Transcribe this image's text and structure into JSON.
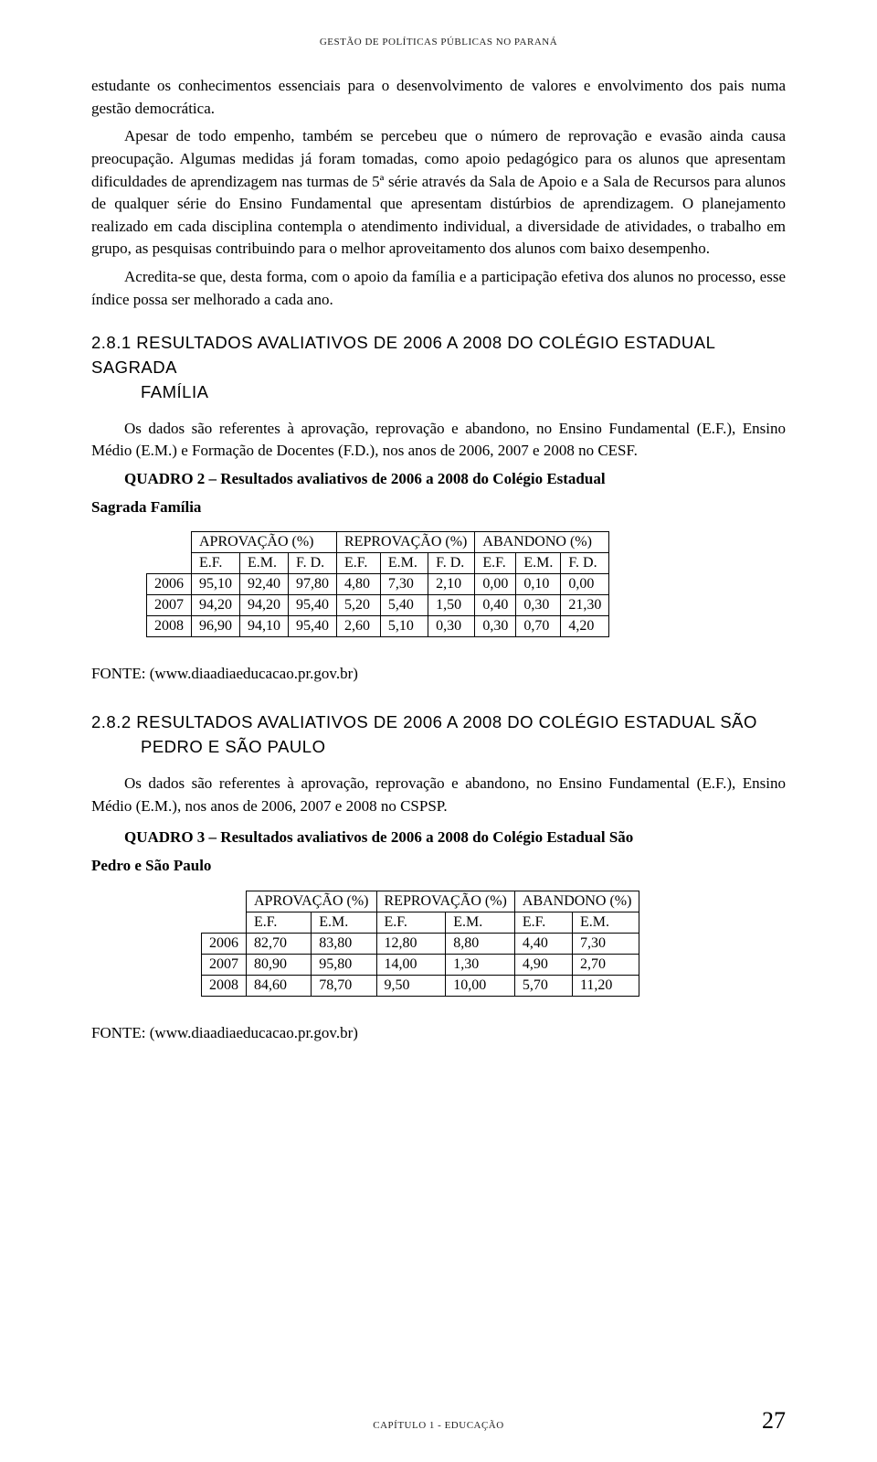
{
  "header": {
    "running": "GESTÃO DE POLÍTICAS PÚBLICAS NO PARANÁ"
  },
  "paragraphs": {
    "p1": "estudante os conhecimentos essenciais para o desenvolvimento de valores e envolvimento dos pais numa gestão democrática.",
    "p2": "Apesar de todo empenho, também se percebeu que o número de reprovação e evasão ainda causa preocupação. Algumas medidas já foram tomadas, como apoio pedagógico para os alunos que apresentam dificuldades de aprendizagem nas turmas de 5ª série através da Sala de Apoio e a Sala de Recursos para alunos de qualquer série do Ensino Fundamental que apresentam distúrbios de aprendizagem. O planejamento realizado em cada disciplina contempla o atendimento individual, a diversidade de atividades, o trabalho em grupo, as pesquisas contribuindo para o melhor aproveitamento dos alunos com baixo desempenho.",
    "p3": "Acredita-se que, desta forma, com o apoio da família e a participação efetiva dos alunos no processo, esse índice possa ser melhorado a cada ano.",
    "p4": "Os dados são referentes à aprovação, reprovação e abandono, no Ensino Fundamental (E.F.), Ensino Médio (E.M.) e Formação de Docentes (F.D.), nos anos de 2006, 2007 e 2008 no CESF.",
    "p5": "Os dados são referentes à aprovação, reprovação e abandono, no Ensino Fundamental (E.F.), Ensino Médio (E.M.), nos anos de 2006, 2007 e 2008 no CSPSP."
  },
  "sections": {
    "s281_num": "2.8.1",
    "s281_title": "RESULTADOS AVALIATIVOS DE 2006 A 2008 DO COLÉGIO ESTADUAL SAGRADA",
    "s281_title2": "FAMÍLIA",
    "s282_num": "2.8.2",
    "s282_title": "RESULTADOS AVALIATIVOS DE 2006 A 2008 DO COLÉGIO ESTADUAL SÃO",
    "s282_title2": "PEDRO E SÃO PAULO"
  },
  "quadros": {
    "q2_line1": "QUADRO 2 – Resultados avaliativos de 2006 a 2008 do Colégio Estadual",
    "q2_line2": "Sagrada Família",
    "q3_line1": "QUADRO 3 – Resultados avaliativos de 2006 a 2008 do Colégio Estadual São",
    "q3_line2": "Pedro e São Paulo"
  },
  "table2": {
    "group_headers": [
      "APROVAÇÃO (%)",
      "REPROVAÇÃO (%)",
      "ABANDONO (%)"
    ],
    "sub_headers": [
      "E.F.",
      "E.M.",
      "F. D.",
      "E.F.",
      "E.M.",
      "F. D.",
      "E.F.",
      "E.M.",
      "F. D."
    ],
    "rows": [
      {
        "year": "2006",
        "cells": [
          "95,10",
          "92,40",
          "97,80",
          "4,80",
          "7,30",
          "2,10",
          "0,00",
          "0,10",
          "0,00"
        ]
      },
      {
        "year": "2007",
        "cells": [
          "94,20",
          "94,20",
          "95,40",
          "5,20",
          "5,40",
          "1,50",
          "0,40",
          "0,30",
          "21,30"
        ]
      },
      {
        "year": "2008",
        "cells": [
          "96,90",
          "94,10",
          "95,40",
          "2,60",
          "5,10",
          "0,30",
          "0,30",
          "0,70",
          "4,20"
        ]
      }
    ]
  },
  "table3": {
    "group_headers": [
      "APROVAÇÃO (%)",
      "REPROVAÇÃO (%)",
      "ABANDONO (%)"
    ],
    "sub_headers": [
      "E.F.",
      "E.M.",
      "E.F.",
      "E.M.",
      "E.F.",
      "E.M."
    ],
    "rows": [
      {
        "year": "2006",
        "cells": [
          "82,70",
          "83,80",
          "12,80",
          "8,80",
          "4,40",
          "7,30"
        ]
      },
      {
        "year": "2007",
        "cells": [
          "80,90",
          "95,80",
          "14,00",
          "1,30",
          "4,90",
          "2,70"
        ]
      },
      {
        "year": "2008",
        "cells": [
          "84,60",
          "78,70",
          "9,50",
          "10,00",
          "5,70",
          "11,20"
        ]
      }
    ]
  },
  "source": "FONTE: (www.diaadiaeducacao.pr.gov.br)",
  "footer": {
    "chapter": "CAPÍTULO 1 - EDUCAÇÃO",
    "page": "27"
  }
}
